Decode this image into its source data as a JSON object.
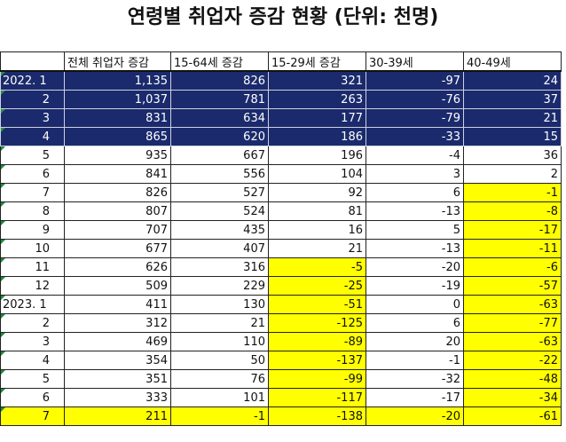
{
  "title": "연령별 취업자 증감 현황 (단위: 천명)",
  "headers": [
    "",
    "전체 취업자 증감",
    "15-64세 증감",
    "15-29세 증감",
    "30-39세",
    "40-49세"
  ],
  "rows": [
    {
      "month": "2022.  1",
      "yr": true,
      "vals": [
        "1,135",
        "826",
        "321",
        "-97",
        "24"
      ],
      "style": "navy",
      "yl": []
    },
    {
      "month": "2",
      "vals": [
        "1,037",
        "781",
        "263",
        "-76",
        "37"
      ],
      "style": "navy",
      "yl": []
    },
    {
      "month": "3",
      "vals": [
        "831",
        "634",
        "177",
        "-79",
        "21"
      ],
      "style": "navy",
      "yl": []
    },
    {
      "month": "4",
      "vals": [
        "865",
        "620",
        "186",
        "-33",
        "15"
      ],
      "style": "navy",
      "yl": []
    },
    {
      "month": "5",
      "vals": [
        "935",
        "667",
        "196",
        "-4",
        "36"
      ],
      "yl": []
    },
    {
      "month": "6",
      "vals": [
        "841",
        "556",
        "104",
        "3",
        "2"
      ],
      "yl": []
    },
    {
      "month": "7",
      "vals": [
        "826",
        "527",
        "92",
        "6",
        "-1"
      ],
      "yl": [
        4
      ]
    },
    {
      "month": "8",
      "vals": [
        "807",
        "524",
        "81",
        "-13",
        "-8"
      ],
      "yl": [
        4
      ]
    },
    {
      "month": "9",
      "vals": [
        "707",
        "435",
        "16",
        "5",
        "-17"
      ],
      "yl": [
        4
      ]
    },
    {
      "month": "10",
      "vals": [
        "677",
        "407",
        "21",
        "-13",
        "-11"
      ],
      "yl": [
        4
      ]
    },
    {
      "month": "11",
      "vals": [
        "626",
        "316",
        "-5",
        "-20",
        "-6"
      ],
      "yl": [
        2,
        4
      ]
    },
    {
      "month": "12",
      "vals": [
        "509",
        "229",
        "-25",
        "-19",
        "-57"
      ],
      "yl": [
        2,
        4
      ]
    },
    {
      "month": "2023.  1",
      "yr": true,
      "vals": [
        "411",
        "130",
        "-51",
        "0",
        "-63"
      ],
      "yl": [
        2,
        4
      ]
    },
    {
      "month": "2",
      "vals": [
        "312",
        "21",
        "-125",
        "6",
        "-77"
      ],
      "yl": [
        2,
        4
      ]
    },
    {
      "month": "3",
      "vals": [
        "469",
        "110",
        "-89",
        "20",
        "-63"
      ],
      "yl": [
        2,
        4
      ]
    },
    {
      "month": "4",
      "vals": [
        "354",
        "50",
        "-137",
        "-1",
        "-22"
      ],
      "yl": [
        2,
        4
      ]
    },
    {
      "month": "5",
      "vals": [
        "351",
        "76",
        "-99",
        "-32",
        "-48"
      ],
      "yl": [
        2,
        4
      ]
    },
    {
      "month": "6",
      "vals": [
        "333",
        "101",
        "-117",
        "-17",
        "-34"
      ],
      "yl": [
        2,
        4
      ]
    },
    {
      "month": "7",
      "vals": [
        "211",
        "-1",
        "-138",
        "-20",
        "-61"
      ],
      "style": "yellowrow",
      "yl": []
    }
  ]
}
